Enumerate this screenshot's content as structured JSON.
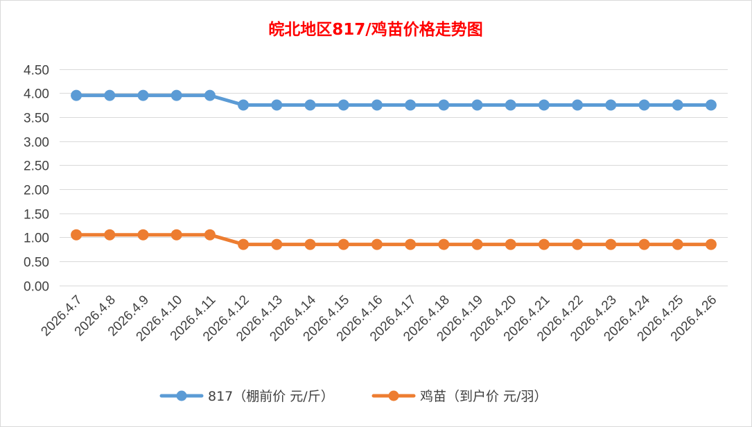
{
  "chart_data": {
    "type": "line",
    "title": "皖北地区817/鸡苗价格走势图",
    "xlabel": "",
    "ylabel": "",
    "categories": [
      "2026.4.7",
      "2026.4.8",
      "2026.4.9",
      "2026.4.10",
      "2026.4.11",
      "2026.4.12",
      "2026.4.13",
      "2026.4.14",
      "2026.4.15",
      "2026.4.16",
      "2026.4.17",
      "2026.4.18",
      "2026.4.19",
      "2026.4.20",
      "2026.4.21",
      "2026.4.22",
      "2026.4.23",
      "2026.4.24",
      "2026.4.25",
      "2026.4.26"
    ],
    "ylim": [
      0,
      4.5
    ],
    "yticks": [
      "0.00",
      "0.50",
      "1.00",
      "1.50",
      "2.00",
      "2.50",
      "3.00",
      "3.50",
      "4.00",
      "4.50"
    ],
    "grid": true,
    "legend_position": "bottom",
    "series": [
      {
        "name": "817（棚前价 元/斤）",
        "color": "#5b9bd5",
        "values": [
          3.95,
          3.95,
          3.95,
          3.95,
          3.95,
          3.75,
          3.75,
          3.75,
          3.75,
          3.75,
          3.75,
          3.75,
          3.75,
          3.75,
          3.75,
          3.75,
          3.75,
          3.75,
          3.75,
          3.75
        ]
      },
      {
        "name": "鸡苗（到户价 元/羽）",
        "color": "#ed7d31",
        "values": [
          1.05,
          1.05,
          1.05,
          1.05,
          1.05,
          0.85,
          0.85,
          0.85,
          0.85,
          0.85,
          0.85,
          0.85,
          0.85,
          0.85,
          0.85,
          0.85,
          0.85,
          0.85,
          0.85,
          0.85
        ]
      }
    ]
  }
}
